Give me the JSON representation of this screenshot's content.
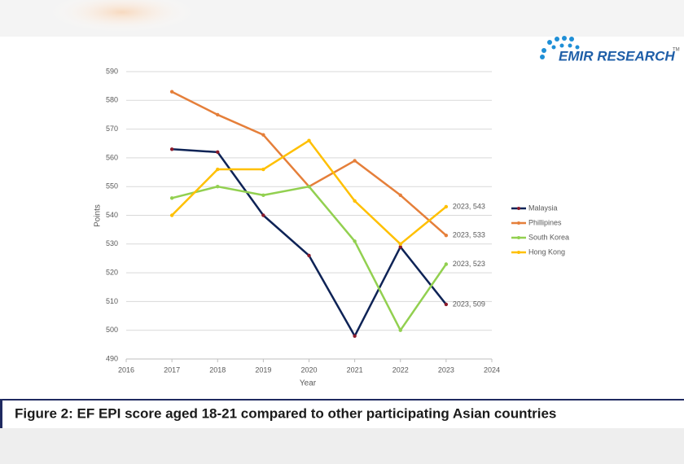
{
  "chart_data": {
    "type": "line",
    "x": [
      2017,
      2018,
      2019,
      2020,
      2021,
      2022,
      2023
    ],
    "xlim": [
      2016,
      2024
    ],
    "xticks": [
      2016,
      2017,
      2018,
      2019,
      2020,
      2021,
      2022,
      2023,
      2024
    ],
    "ylim": [
      490,
      590
    ],
    "yticks": [
      490,
      500,
      510,
      520,
      530,
      540,
      550,
      560,
      570,
      580,
      590
    ],
    "xlabel": "Year",
    "ylabel": "Points",
    "grid": true,
    "legend": "right",
    "series": [
      {
        "name": "Malaysia",
        "color": "#0e2356",
        "values": [
          563,
          562,
          540,
          526,
          498,
          529,
          509
        ],
        "value_labels": [
          null,
          null,
          null,
          null,
          null,
          null,
          "2023, 509"
        ]
      },
      {
        "name": "Phillipines",
        "color": "#e57f3a",
        "values": [
          583,
          575,
          568,
          550,
          559,
          547,
          533
        ],
        "value_labels": [
          null,
          null,
          null,
          null,
          null,
          null,
          "2023, 533"
        ]
      },
      {
        "name": "South Korea",
        "color": "#92d050",
        "values": [
          546,
          550,
          547,
          550,
          531,
          500,
          523
        ],
        "value_labels": [
          null,
          null,
          null,
          null,
          null,
          null,
          "2023, 523"
        ]
      },
      {
        "name": "Hong Kong",
        "color": "#ffc000",
        "values": [
          540,
          556,
          556,
          566,
          545,
          530,
          543
        ],
        "value_labels": [
          null,
          null,
          null,
          null,
          null,
          null,
          "2023, 543"
        ]
      }
    ]
  },
  "logo": {
    "text": "EMIR RESEARCH",
    "mark": "TM"
  },
  "caption": "Figure 2: EF EPI score aged 18-21 compared to other participating Asian countries"
}
